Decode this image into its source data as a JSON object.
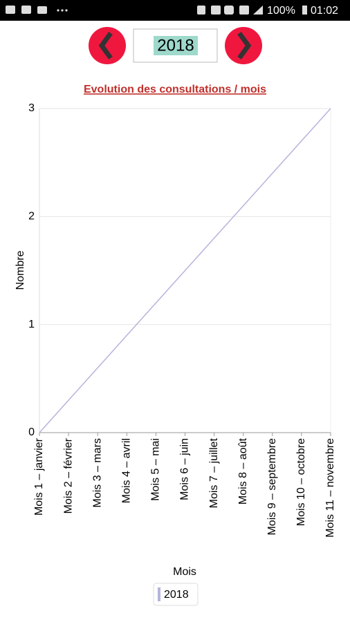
{
  "status_bar": {
    "battery": "100%",
    "time": "01:02"
  },
  "year_selector": {
    "year": "2018"
  },
  "chart_data": {
    "type": "line",
    "title": "Evolution des consultations / mois",
    "x_label": "Mois",
    "y_label": "Nombre",
    "categories": [
      "Mois 1 – janvier",
      "Mois 2 – février",
      "Mois 3 – mars",
      "Mois 4 – avril",
      "Mois 5 – mai",
      "Mois 6 – juin",
      "Mois 7 – juillet",
      "Mois 8 – août",
      "Mois 9 – septembre",
      "Mois 10 – octobre",
      "Mois 11 – novembre"
    ],
    "series": [
      {
        "name": "2018",
        "color": "#b4b4dc",
        "values": [
          0,
          0.3,
          0.6,
          0.9,
          1.2,
          1.5,
          1.8,
          2.1,
          2.4,
          2.7,
          3
        ]
      }
    ],
    "ylim": [
      0,
      3
    ],
    "yticks": [
      0,
      1,
      2,
      3
    ],
    "grid": true
  }
}
